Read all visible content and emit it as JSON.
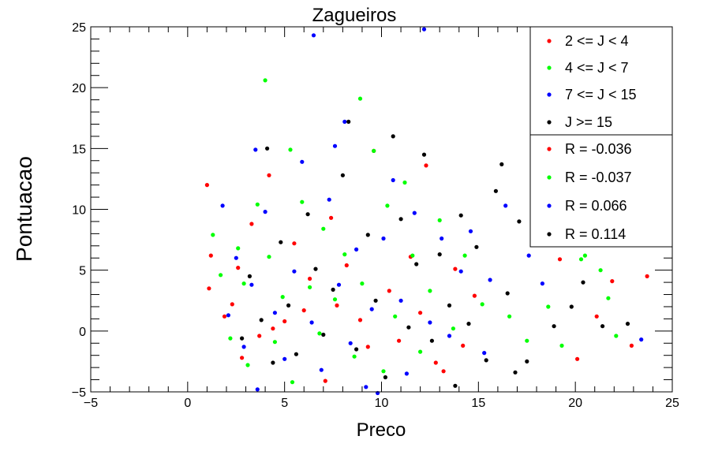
{
  "chart_data": {
    "type": "scatter",
    "title": "Zagueiros",
    "xlabel": "Preco",
    "ylabel": "Pontuacao",
    "xlim": [
      -5,
      25
    ],
    "ylim": [
      -5,
      25
    ],
    "x_ticks": [
      -5,
      0,
      5,
      10,
      15,
      20,
      25
    ],
    "y_ticks": [
      -5,
      0,
      5,
      10,
      15,
      20,
      25
    ],
    "x_tick_labels": [
      "−5",
      "0",
      "5",
      "10",
      "15",
      "20",
      "25"
    ],
    "y_tick_labels": [
      "−5",
      "0",
      "5",
      "10",
      "15",
      "20",
      "25"
    ],
    "legend_position": "top-right",
    "legend": {
      "series_labels": [
        "2 <= J < 4",
        "4 <= J < 7",
        "7 <= J < 15",
        "J >= 15"
      ],
      "correlation_labels": [
        "R = -0.036",
        "R = -0.037",
        "R = 0.066",
        "R = 0.114"
      ]
    },
    "series": [
      {
        "name": "2 <= J < 4",
        "color": "#ff0000",
        "points": [
          [
            1.0,
            12.0
          ],
          [
            1.1,
            3.5
          ],
          [
            1.2,
            6.2
          ],
          [
            1.9,
            1.2
          ],
          [
            2.3,
            2.2
          ],
          [
            2.6,
            5.2
          ],
          [
            2.8,
            -2.2
          ],
          [
            3.3,
            8.8
          ],
          [
            3.7,
            -0.4
          ],
          [
            4.2,
            12.8
          ],
          [
            4.4,
            0.2
          ],
          [
            5.0,
            0.8
          ],
          [
            5.5,
            7.2
          ],
          [
            6.0,
            1.7
          ],
          [
            6.3,
            4.3
          ],
          [
            7.1,
            -4.1
          ],
          [
            7.4,
            9.3
          ],
          [
            7.7,
            2.1
          ],
          [
            8.2,
            5.4
          ],
          [
            8.9,
            0.9
          ],
          [
            9.3,
            -1.3
          ],
          [
            9.6,
            14.8
          ],
          [
            10.4,
            3.3
          ],
          [
            10.9,
            -0.8
          ],
          [
            11.5,
            6.1
          ],
          [
            12.0,
            1.5
          ],
          [
            12.3,
            13.6
          ],
          [
            12.8,
            -2.6
          ],
          [
            13.2,
            -3.3
          ],
          [
            13.8,
            5.1
          ],
          [
            14.2,
            -1.2
          ],
          [
            14.8,
            2.9
          ],
          [
            19.2,
            5.9
          ],
          [
            20.1,
            -2.3
          ],
          [
            21.1,
            1.2
          ],
          [
            21.9,
            4.1
          ],
          [
            22.9,
            -1.2
          ],
          [
            23.7,
            4.5
          ]
        ]
      },
      {
        "name": "4 <= J < 7",
        "color": "#00ff00",
        "points": [
          [
            1.3,
            7.9
          ],
          [
            1.7,
            4.6
          ],
          [
            2.2,
            -0.6
          ],
          [
            2.6,
            6.8
          ],
          [
            2.9,
            3.9
          ],
          [
            3.1,
            -2.8
          ],
          [
            3.6,
            10.4
          ],
          [
            4.0,
            20.6
          ],
          [
            4.2,
            6.1
          ],
          [
            4.5,
            -0.9
          ],
          [
            4.9,
            2.8
          ],
          [
            5.3,
            14.9
          ],
          [
            5.4,
            -4.2
          ],
          [
            5.9,
            10.6
          ],
          [
            6.3,
            3.6
          ],
          [
            6.8,
            -0.2
          ],
          [
            7.0,
            8.4
          ],
          [
            7.6,
            2.6
          ],
          [
            8.1,
            6.3
          ],
          [
            8.6,
            -2.1
          ],
          [
            8.9,
            19.1
          ],
          [
            9.0,
            3.9
          ],
          [
            9.6,
            14.8
          ],
          [
            10.1,
            -3.3
          ],
          [
            10.3,
            10.3
          ],
          [
            10.7,
            1.2
          ],
          [
            11.2,
            12.2
          ],
          [
            11.6,
            6.2
          ],
          [
            12.0,
            -1.7
          ],
          [
            12.5,
            3.3
          ],
          [
            13.0,
            9.1
          ],
          [
            13.7,
            0.2
          ],
          [
            14.3,
            6.2
          ],
          [
            15.2,
            2.2
          ],
          [
            16.6,
            1.2
          ],
          [
            17.5,
            -0.8
          ],
          [
            18.6,
            2.0
          ],
          [
            19.3,
            -1.2
          ],
          [
            20.3,
            5.9
          ],
          [
            20.5,
            6.2
          ],
          [
            21.3,
            5.0
          ],
          [
            21.7,
            2.7
          ],
          [
            22.1,
            -0.4
          ]
        ]
      },
      {
        "name": "7 <= J < 15",
        "color": "#0000ff",
        "points": [
          [
            1.8,
            10.3
          ],
          [
            2.1,
            1.3
          ],
          [
            2.5,
            6.0
          ],
          [
            2.9,
            -1.3
          ],
          [
            3.3,
            3.8
          ],
          [
            3.5,
            14.9
          ],
          [
            3.6,
            -4.8
          ],
          [
            4.0,
            9.8
          ],
          [
            4.5,
            1.5
          ],
          [
            5.0,
            -2.3
          ],
          [
            5.5,
            4.9
          ],
          [
            5.9,
            13.9
          ],
          [
            6.4,
            0.7
          ],
          [
            6.5,
            24.3
          ],
          [
            6.9,
            -3.2
          ],
          [
            7.3,
            10.8
          ],
          [
            7.6,
            15.2
          ],
          [
            7.8,
            3.8
          ],
          [
            8.1,
            17.2
          ],
          [
            8.4,
            -1.0
          ],
          [
            8.7,
            6.7
          ],
          [
            9.2,
            -4.6
          ],
          [
            9.5,
            1.8
          ],
          [
            9.8,
            -5.1
          ],
          [
            10.1,
            7.6
          ],
          [
            10.6,
            12.4
          ],
          [
            11.0,
            2.5
          ],
          [
            11.3,
            -3.5
          ],
          [
            11.7,
            9.7
          ],
          [
            12.2,
            24.8
          ],
          [
            12.5,
            0.7
          ],
          [
            13.1,
            7.6
          ],
          [
            13.5,
            -0.4
          ],
          [
            14.1,
            4.9
          ],
          [
            14.6,
            8.2
          ],
          [
            15.3,
            -1.8
          ],
          [
            15.6,
            4.2
          ],
          [
            16.4,
            10.3
          ],
          [
            17.6,
            6.2
          ],
          [
            18.3,
            3.9
          ],
          [
            19.3,
            9.2
          ],
          [
            20.2,
            8.6
          ],
          [
            22.0,
            10.4
          ],
          [
            23.4,
            -0.7
          ]
        ]
      },
      {
        "name": "J >= 15",
        "color": "#000000",
        "points": [
          [
            2.8,
            -0.6
          ],
          [
            3.2,
            4.5
          ],
          [
            3.8,
            0.9
          ],
          [
            4.1,
            15.0
          ],
          [
            4.4,
            -2.6
          ],
          [
            4.8,
            7.3
          ],
          [
            5.2,
            2.1
          ],
          [
            5.6,
            -1.9
          ],
          [
            6.2,
            9.6
          ],
          [
            6.6,
            5.1
          ],
          [
            7.0,
            -0.3
          ],
          [
            7.5,
            3.4
          ],
          [
            8.0,
            12.8
          ],
          [
            8.3,
            17.2
          ],
          [
            8.7,
            -1.5
          ],
          [
            9.3,
            7.9
          ],
          [
            9.7,
            2.5
          ],
          [
            10.2,
            -3.8
          ],
          [
            10.6,
            16.0
          ],
          [
            11.0,
            9.2
          ],
          [
            11.4,
            0.3
          ],
          [
            11.8,
            5.5
          ],
          [
            12.2,
            14.5
          ],
          [
            12.6,
            -0.8
          ],
          [
            13.0,
            6.3
          ],
          [
            13.5,
            2.1
          ],
          [
            13.8,
            -4.5
          ],
          [
            14.1,
            9.5
          ],
          [
            14.5,
            0.6
          ],
          [
            14.9,
            6.9
          ],
          [
            15.4,
            -2.4
          ],
          [
            15.9,
            11.5
          ],
          [
            16.2,
            13.7
          ],
          [
            16.5,
            3.1
          ],
          [
            16.9,
            -3.4
          ],
          [
            17.1,
            9.0
          ],
          [
            17.5,
            -2.5
          ],
          [
            17.8,
            12.8
          ],
          [
            18.2,
            7.2
          ],
          [
            18.9,
            0.4
          ],
          [
            19.8,
            2.0
          ],
          [
            20.4,
            4.0
          ],
          [
            21.4,
            0.4
          ],
          [
            22.7,
            0.6
          ]
        ]
      }
    ]
  }
}
